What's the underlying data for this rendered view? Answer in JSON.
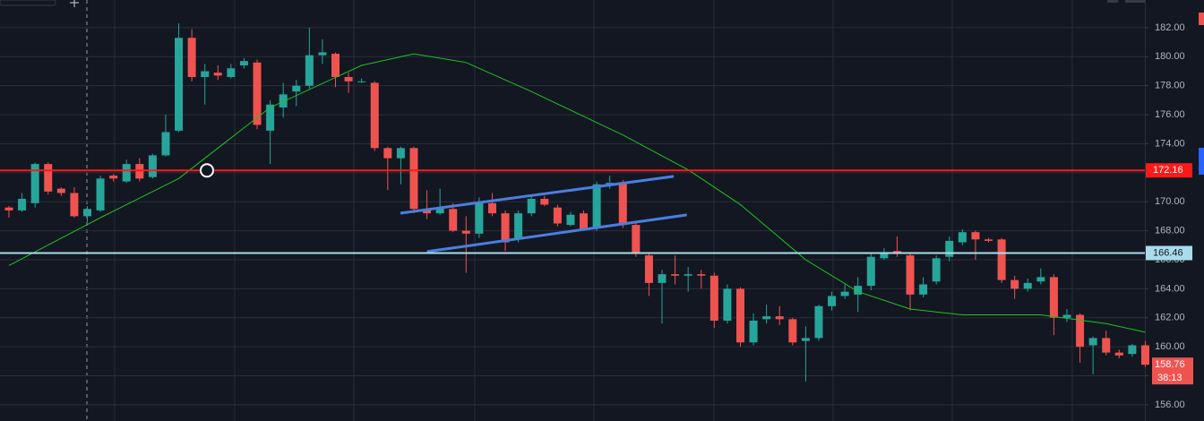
{
  "chart_data": {
    "type": "candlestick",
    "up_color": "#26a69a",
    "down_color": "#ef5350",
    "ylim": [
      154.88,
      183.91
    ],
    "yticks": [
      {
        "value": 156,
        "label": "156.00"
      },
      {
        "value": 158,
        "label": "158.00"
      },
      {
        "value": 160,
        "label": "160.00"
      },
      {
        "value": 162,
        "label": "162.00"
      },
      {
        "value": 164,
        "label": "164.00"
      },
      {
        "value": 166,
        "label": "166.00"
      },
      {
        "value": 168,
        "label": "168.00"
      },
      {
        "value": 170,
        "label": "170.00"
      },
      {
        "value": 172,
        "label": "172.00"
      },
      {
        "value": 174,
        "label": "174.00"
      },
      {
        "value": 176,
        "label": "176.00"
      },
      {
        "value": 178,
        "label": "178.00"
      },
      {
        "value": 180,
        "label": "180.00"
      },
      {
        "value": 182,
        "label": "182.00"
      }
    ],
    "grid": true,
    "open": [
      169.6,
      169.4,
      169.9,
      172.6,
      170.9,
      170.6,
      169.0,
      169.4,
      171.8,
      171.4,
      172.6,
      171.7,
      173.2,
      174.9,
      181.3,
      178.6,
      178.9,
      178.6,
      179.4,
      179.6,
      174.9,
      176.5,
      177.6,
      178.0,
      180.1,
      180.2,
      178.6,
      178.3,
      178.2,
      173.7,
      173.0,
      173.7,
      169.5,
      169.2,
      169.5,
      168.0,
      167.8,
      169.9,
      169.2,
      167.4,
      169.2,
      170.2,
      169.6,
      168.4,
      169.2,
      168.2,
      171.1,
      171.3,
      168.4,
      166.3,
      164.4,
      165.0,
      164.9,
      165.0,
      164.9,
      161.8,
      164.0,
      160.3,
      161.9,
      162.1,
      161.9,
      160.4,
      160.6,
      162.8,
      163.5,
      163.6,
      164.2,
      166.1,
      166.6,
      166.3,
      163.6,
      164.5,
      166.2,
      167.2,
      167.9,
      167.4,
      167.4,
      164.6,
      164.0,
      164.5,
      164.8,
      162.0,
      162.2,
      160.1,
      160.6,
      159.6,
      159.5,
      160.1
    ],
    "high": [
      169.7,
      170.6,
      172.7,
      172.7,
      171.0,
      171.0,
      169.7,
      171.8,
      171.9,
      172.9,
      173.0,
      173.3,
      176.0,
      182.3,
      181.9,
      179.5,
      179.4,
      179.5,
      179.9,
      179.8,
      177.0,
      178.2,
      178.4,
      182.0,
      181.2,
      180.3,
      178.9,
      178.5,
      178.3,
      173.8,
      173.8,
      173.8,
      170.8,
      170.9,
      169.9,
      169.0,
      170.3,
      170.6,
      169.4,
      169.4,
      170.4,
      170.4,
      169.8,
      169.3,
      169.4,
      171.4,
      171.8,
      171.5,
      168.5,
      166.4,
      165.3,
      166.3,
      165.5,
      165.3,
      165.1,
      164.3,
      164.1,
      162.3,
      162.9,
      162.8,
      162.0,
      161.4,
      162.9,
      163.8,
      164.3,
      164.8,
      166.5,
      166.8,
      167.6,
      166.5,
      164.8,
      166.3,
      167.6,
      168.1,
      168.0,
      167.5,
      167.5,
      164.9,
      164.7,
      165.4,
      165.0,
      162.6,
      162.3,
      160.7,
      161.1,
      159.8,
      160.2,
      160.4
    ],
    "low": [
      168.9,
      169.3,
      169.6,
      170.5,
      170.4,
      168.9,
      168.6,
      169.3,
      171.4,
      171.3,
      171.4,
      171.6,
      173.1,
      174.8,
      178.3,
      176.7,
      178.4,
      178.5,
      179.2,
      175.0,
      172.6,
      175.8,
      176.6,
      177.8,
      179.5,
      177.9,
      177.5,
      178.2,
      173.5,
      170.8,
      171.2,
      169.2,
      168.8,
      169.1,
      167.9,
      165.1,
      167.5,
      169.0,
      166.6,
      167.2,
      169.0,
      169.7,
      168.3,
      168.3,
      168.0,
      168.0,
      170.9,
      168.2,
      166.2,
      163.5,
      161.6,
      164.3,
      163.8,
      164.0,
      161.3,
      161.6,
      160.0,
      160.1,
      161.6,
      161.5,
      160.1,
      157.6,
      160.4,
      162.5,
      163.3,
      162.4,
      163.9,
      166.0,
      166.2,
      162.5,
      163.4,
      164.3,
      165.9,
      167.0,
      166.0,
      167.2,
      164.4,
      163.3,
      163.8,
      164.3,
      160.8,
      161.7,
      158.9,
      158.1,
      159.4,
      159.2,
      159.3,
      158.6
    ],
    "close": [
      169.4,
      170.2,
      172.6,
      170.7,
      170.6,
      169.0,
      169.5,
      171.6,
      171.6,
      172.6,
      171.6,
      173.2,
      174.8,
      181.3,
      178.6,
      179.0,
      178.7,
      179.2,
      179.7,
      175.3,
      176.7,
      177.4,
      178.0,
      180.1,
      180.3,
      178.6,
      178.3,
      178.3,
      173.7,
      173.0,
      173.7,
      169.5,
      169.2,
      169.6,
      168.0,
      167.8,
      169.9,
      169.2,
      167.2,
      169.2,
      170.2,
      169.8,
      168.5,
      169.1,
      168.1,
      171.2,
      171.3,
      168.4,
      166.4,
      164.4,
      165.0,
      164.9,
      165.0,
      164.9,
      161.8,
      164.0,
      160.3,
      161.8,
      162.1,
      161.9,
      160.3,
      160.6,
      162.8,
      163.5,
      163.8,
      164.2,
      166.2,
      166.5,
      166.4,
      163.6,
      164.3,
      166.1,
      167.3,
      167.9,
      167.4,
      167.3,
      164.6,
      164.0,
      164.4,
      164.8,
      162.0,
      162.2,
      160.0,
      160.6,
      159.6,
      159.4,
      160.1,
      158.76
    ],
    "moving_average": {
      "color": "#22c022",
      "x": [
        0,
        7,
        13,
        20,
        27,
        31,
        35,
        40,
        47,
        52,
        56,
        61,
        65,
        69,
        73,
        79,
        84,
        87
      ],
      "values": [
        165.6,
        168.9,
        171.6,
        176.5,
        179.4,
        180.2,
        179.6,
        177.6,
        174.6,
        172.2,
        169.8,
        166.0,
        163.8,
        162.6,
        162.2,
        162.2,
        161.6,
        161.0
      ]
    },
    "trend_lines": [
      {
        "color": "#4a7fe0",
        "x": [
          29.97,
          50.9
        ],
        "values": [
          169.21,
          171.75
        ]
      },
      {
        "color": "#4a7fe0",
        "x": [
          32.0,
          51.9
        ],
        "values": [
          166.56,
          169.09
        ]
      }
    ],
    "price_lines": [
      {
        "value": 172.16,
        "label": "172.16",
        "color": "#ff1a1a",
        "label_color": "#ffffff"
      },
      {
        "value": 166.46,
        "label": "166.46",
        "color": "#a8dcec",
        "label_color": "#131722"
      }
    ],
    "last_price": {
      "value": 158.76,
      "label": "158.76",
      "countdown": "38:13",
      "color": "#ef5350"
    }
  }
}
